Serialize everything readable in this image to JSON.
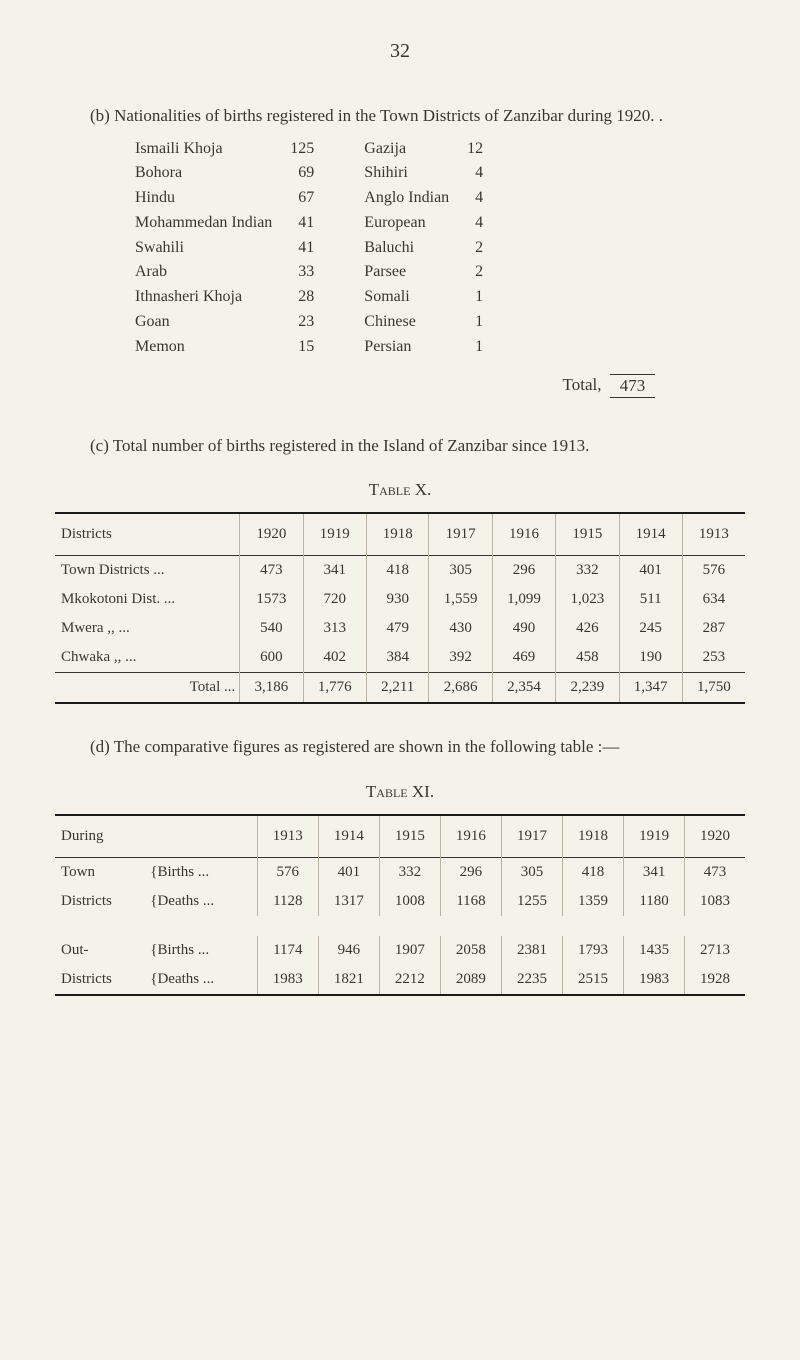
{
  "page_number": "32",
  "section_b": {
    "intro": "(b)   Nationalities of births registered in the Town Districts of Zanzibar during 1920. .",
    "left": [
      {
        "name": "Ismaili Khoja",
        "val": "125"
      },
      {
        "name": "Bohora",
        "val": "69"
      },
      {
        "name": "Hindu",
        "val": "67"
      },
      {
        "name": "Mohammedan Indian",
        "val": "41"
      },
      {
        "name": "Swahili",
        "val": "41"
      },
      {
        "name": "Arab",
        "val": "33"
      },
      {
        "name": "Ithnasheri Khoja",
        "val": "28"
      },
      {
        "name": "Goan",
        "val": "23"
      },
      {
        "name": "Memon",
        "val": "15"
      }
    ],
    "right": [
      {
        "name": "Gazija",
        "val": "12"
      },
      {
        "name": "Shihiri",
        "val": "4"
      },
      {
        "name": "Anglo Indian",
        "val": "4"
      },
      {
        "name": "European",
        "val": "4"
      },
      {
        "name": "Baluchi",
        "val": "2"
      },
      {
        "name": "Parsee",
        "val": "2"
      },
      {
        "name": "Somali",
        "val": "1"
      },
      {
        "name": "Chinese",
        "val": "1"
      },
      {
        "name": "Persian",
        "val": "1"
      }
    ],
    "total_label": "Total,",
    "total_value": "473"
  },
  "section_c": {
    "intro": "(c)   Total number of births registered in the Island of Zanzibar since 1913."
  },
  "table_x": {
    "caption": "Table X.",
    "headers": [
      "Districts",
      "1920",
      "1919",
      "1918",
      "1917",
      "1916",
      "1915",
      "1914",
      "1913"
    ],
    "rows": [
      [
        "Town Districts   ...",
        "473",
        "341",
        "418",
        "305",
        "296",
        "332",
        "401",
        "576"
      ],
      [
        "Mkokotoni Dist. ...",
        "1573",
        "720",
        "930",
        "1,559",
        "1,099",
        "1,023",
        "511",
        "634"
      ],
      [
        "Mwera          ,,     ...",
        "540",
        "313",
        "479",
        "430",
        "490",
        "426",
        "245",
        "287"
      ],
      [
        "Chwaka        ,,     ...",
        "600",
        "402",
        "384",
        "392",
        "469",
        "458",
        "190",
        "253"
      ]
    ],
    "total": [
      "Total   ...",
      "3,186",
      "1,776",
      "2,211",
      "2,686",
      "2,354",
      "2,239",
      "1,347",
      "1,750"
    ]
  },
  "section_d": {
    "intro": "(d)   The comparative figures as registered are shown in the following table :—"
  },
  "table_xi": {
    "caption": "Table XI.",
    "headers": [
      "During",
      "1913",
      "1914",
      "1915",
      "1916",
      "1917",
      "1918",
      "1919",
      "1920"
    ],
    "group1_label": "Town Districts",
    "group2_label": "Out- Districts",
    "rows": [
      {
        "group": "Town",
        "sub": "Births  ...",
        "vals": [
          "576",
          "401",
          "332",
          "296",
          "305",
          "418",
          "341",
          "473"
        ]
      },
      {
        "group": "Districts",
        "sub": "Deaths ...",
        "vals": [
          "1128",
          "1317",
          "1008",
          "1168",
          "1255",
          "1359",
          "1180",
          "1083"
        ]
      },
      {
        "group": "Out-",
        "sub": "Births  ...",
        "vals": [
          "1174",
          "946",
          "1907",
          "2058",
          "2381",
          "1793",
          "1435",
          "2713"
        ]
      },
      {
        "group": "Districts",
        "sub": "Deaths ...",
        "vals": [
          "1983",
          "1821",
          "2212",
          "2089",
          "2235",
          "2515",
          "1983",
          "1928"
        ]
      }
    ]
  }
}
